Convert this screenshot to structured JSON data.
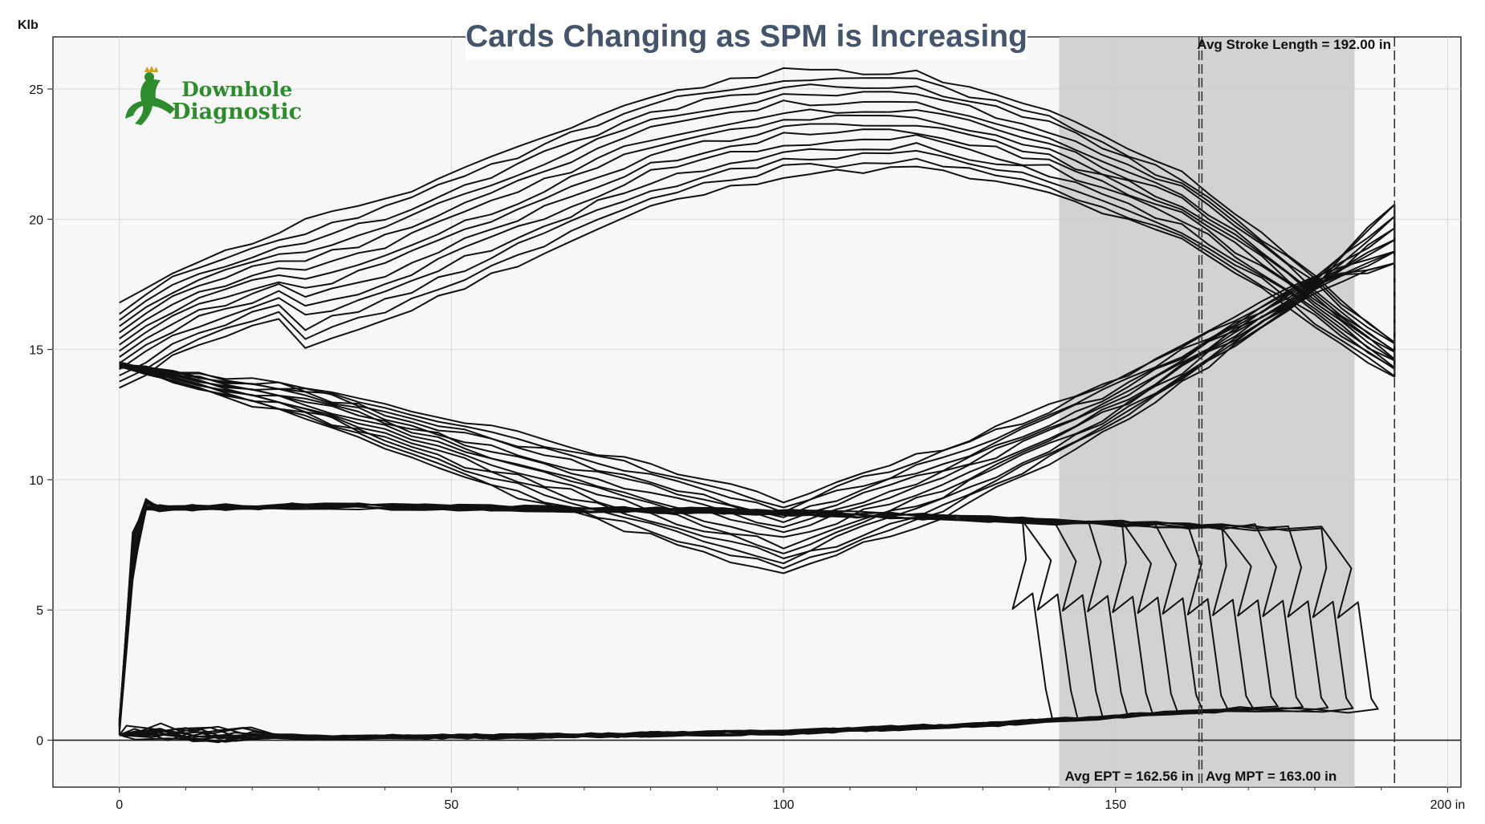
{
  "chart_data": {
    "type": "line",
    "title": "Cards Changing as SPM is Increasing",
    "ylabel": "Klb",
    "xlabel": "",
    "xlim": [
      -10,
      202
    ],
    "ylim": [
      -1.8,
      27
    ],
    "xticks": [
      0,
      50,
      100,
      150,
      200
    ],
    "xtick_labels": [
      "0",
      "50",
      "100",
      "150",
      "200 in"
    ],
    "yticks": [
      0,
      5,
      10,
      15,
      20,
      25
    ],
    "ytick_labels": [
      "0",
      "5",
      "10",
      "15",
      "20",
      "25"
    ],
    "grid": true,
    "title_color": "#44546a",
    "line_color": "#111111",
    "shaded_region": [
      141.5,
      186
    ],
    "annotations": {
      "stroke_length": "Avg Stroke Length = 192.00 in",
      "ept": "Avg EPT = 162.56 in",
      "mpt": "Avg MPT = 163.00 in"
    },
    "reference_lines": {
      "stroke_length": 192.0,
      "ept": 162.56,
      "mpt": 163.0
    },
    "logo": {
      "line1": "Downhole",
      "line2": "Diagnostic",
      "color": "#2e8b2e"
    },
    "surface_cards": {
      "count": 14,
      "upstroke": [
        [
          0,
          15.2
        ],
        [
          10,
          16.8
        ],
        [
          40,
          19.2
        ],
        [
          80,
          23.5
        ],
        [
          100,
          24.6
        ],
        [
          120,
          24.7
        ],
        [
          140,
          23.4
        ],
        [
          160,
          21.2
        ],
        [
          175,
          18.5
        ],
        [
          186,
          16.2
        ],
        [
          192,
          15.2
        ]
      ],
      "downstroke": [
        [
          192,
          19.3
        ],
        [
          183,
          18.0
        ],
        [
          170,
          16.0
        ],
        [
          150,
          13.0
        ],
        [
          125,
          10.1
        ],
        [
          110,
          8.8
        ],
        [
          100,
          7.9
        ],
        [
          80,
          9.3
        ],
        [
          55,
          11.0
        ],
        [
          30,
          12.9
        ],
        [
          10,
          13.9
        ],
        [
          0,
          14.4
        ]
      ]
    },
    "downhole_cards": {
      "count": 14,
      "top": [
        [
          5,
          8.9
        ],
        [
          30,
          9.0
        ],
        [
          60,
          8.9
        ],
        [
          90,
          8.8
        ],
        [
          120,
          8.6
        ],
        [
          140,
          8.4
        ],
        [
          165,
          8.2
        ],
        [
          185,
          8.1
        ]
      ],
      "bottom": [
        [
          0,
          0.3
        ],
        [
          30,
          0.1
        ],
        [
          60,
          0.15
        ],
        [
          100,
          0.3
        ],
        [
          130,
          0.6
        ],
        [
          150,
          0.9
        ],
        [
          170,
          1.2
        ],
        [
          185,
          1.1
        ]
      ],
      "tail_x_range": [
        136,
        185
      ]
    }
  }
}
